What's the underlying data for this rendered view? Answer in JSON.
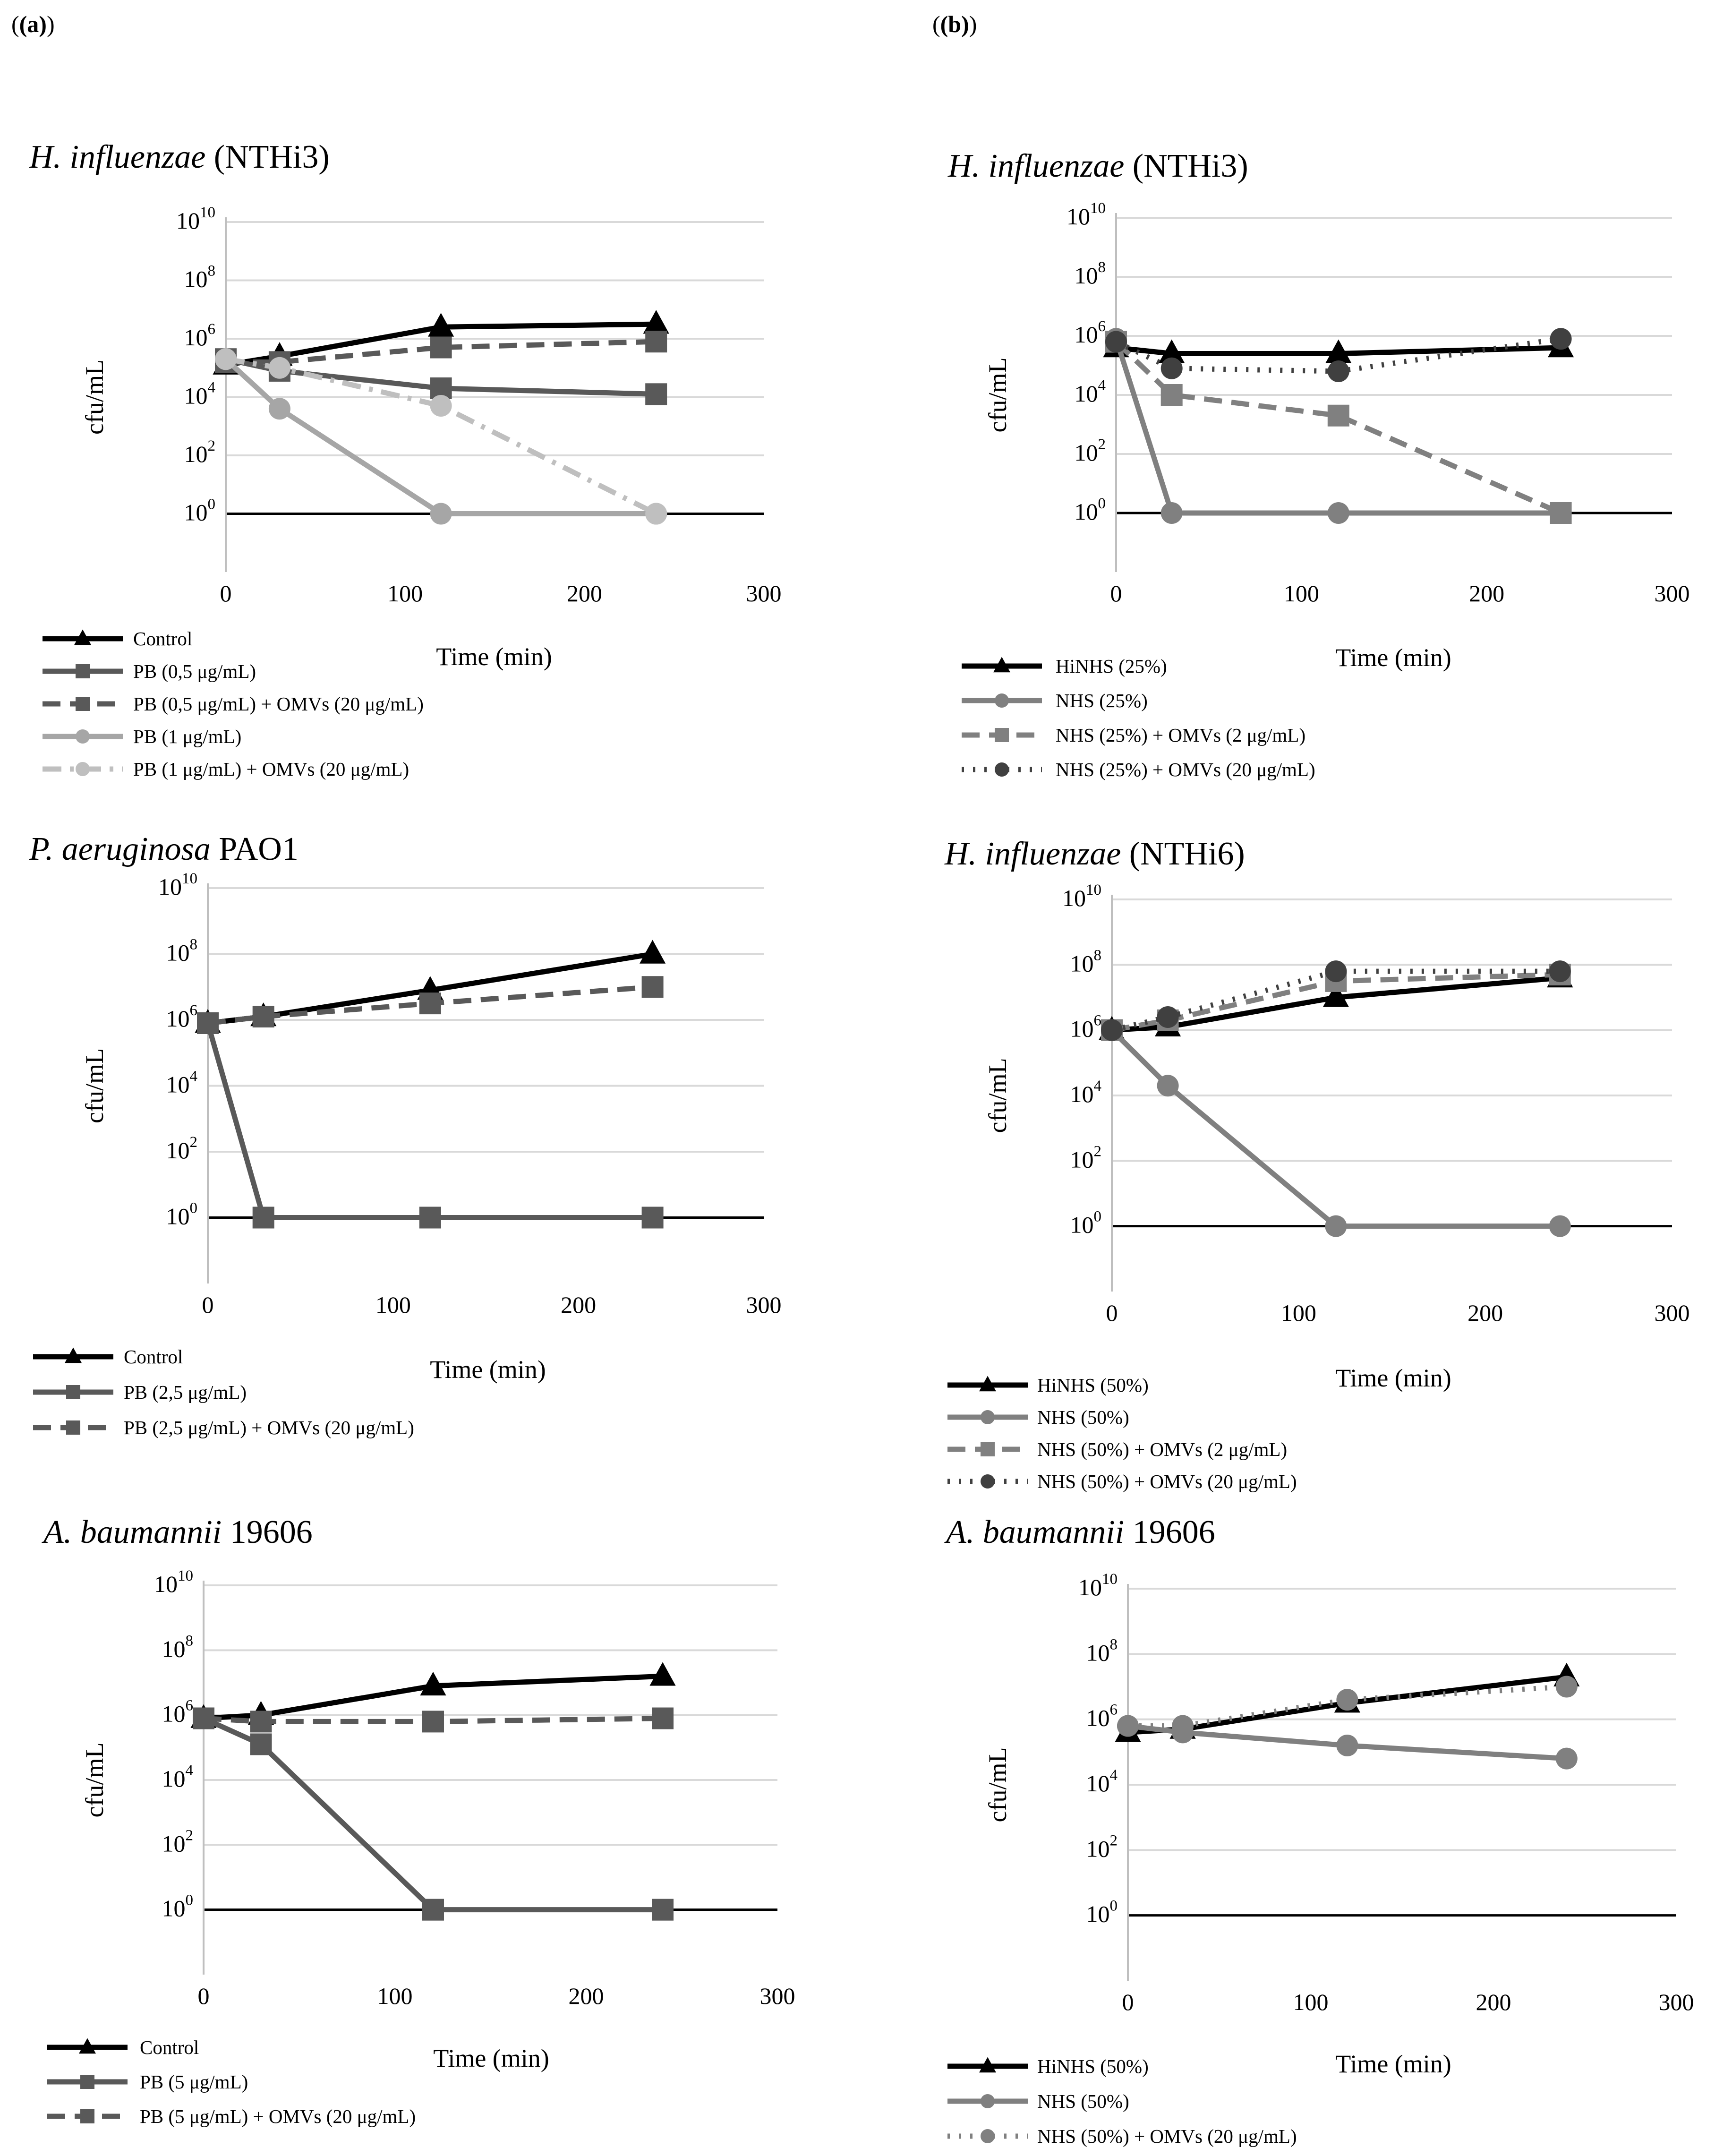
{
  "panels": {
    "a": "(a)",
    "b": "(b)"
  },
  "series_colors": {
    "black": "#000000",
    "dark_gray": "#595959",
    "mid_gray": "#808080",
    "light_gray": "#a6a6a6",
    "dotted_dark": "#404040"
  },
  "chart_data": [
    {
      "id": "a1",
      "type": "line",
      "panel": "a",
      "title_italic": "H. influenzae",
      "title_rest": " (NTHi3)",
      "xlabel": "Time (min)",
      "ylabel": "cfu/mL",
      "yscale": "log",
      "xlim": [
        0,
        300
      ],
      "ylim_exp": [
        -2,
        10
      ],
      "x_ticks": [
        "0",
        "100",
        "200",
        "300"
      ],
      "y_ticks": [
        {
          "base": "10",
          "exp": "0"
        },
        {
          "base": "10",
          "exp": "2"
        },
        {
          "base": "10",
          "exp": "4"
        },
        {
          "base": "10",
          "exp": "6"
        },
        {
          "base": "10",
          "exp": "8"
        },
        {
          "base": "10",
          "exp": "10"
        }
      ],
      "grid": true,
      "series": [
        {
          "name": "Control",
          "x": [
            0,
            30,
            120,
            240
          ],
          "log10_y": [
            5.1,
            5.4,
            6.4,
            6.5
          ],
          "color": "#000000",
          "dash": "solid",
          "marker": "triangle"
        },
        {
          "name": "PB (0,5 μg/mL)",
          "x": [
            0,
            30,
            120,
            240
          ],
          "log10_y": [
            5.3,
            4.9,
            4.3,
            4.1
          ],
          "color": "#595959",
          "dash": "solid",
          "marker": "square"
        },
        {
          "name": "PB (0,5 μg/mL) + OMVs (20 μg/mL)",
          "x": [
            0,
            30,
            120,
            240
          ],
          "log10_y": [
            5.2,
            5.2,
            5.7,
            5.9
          ],
          "color": "#595959",
          "dash": "dash",
          "marker": "square"
        },
        {
          "name": "PB (1 μg/mL)",
          "x": [
            0,
            30,
            120,
            240
          ],
          "log10_y": [
            5.3,
            3.6,
            0,
            0
          ],
          "color": "#a6a6a6",
          "dash": "solid",
          "marker": "circle"
        },
        {
          "name": "PB (1 μg/mL) + OMVs (20 μg/mL)",
          "x": [
            0,
            30,
            120,
            240
          ],
          "log10_y": [
            5.3,
            5.0,
            3.7,
            0
          ],
          "color": "#bfbfbf",
          "dash": "dashdot",
          "marker": "circle"
        }
      ]
    },
    {
      "id": "a2",
      "type": "line",
      "panel": "a",
      "title_italic": "P. aeruginosa",
      "title_rest": " PAO1",
      "xlabel": "Time (min)",
      "ylabel": "cfu/mL",
      "yscale": "log",
      "xlim": [
        0,
        300
      ],
      "ylim_exp": [
        -2,
        10
      ],
      "x_ticks": [
        "0",
        "100",
        "200",
        "300"
      ],
      "y_ticks": [
        {
          "base": "10",
          "exp": "0"
        },
        {
          "base": "10",
          "exp": "2"
        },
        {
          "base": "10",
          "exp": "4"
        },
        {
          "base": "10",
          "exp": "6"
        },
        {
          "base": "10",
          "exp": "8"
        },
        {
          "base": "10",
          "exp": "10"
        }
      ],
      "grid": true,
      "series": [
        {
          "name": "Control",
          "x": [
            0,
            30,
            120,
            240
          ],
          "log10_y": [
            5.9,
            6.1,
            6.9,
            8.0
          ],
          "color": "#000000",
          "dash": "solid",
          "marker": "triangle"
        },
        {
          "name": "PB (2,5 μg/mL)",
          "x": [
            0,
            30,
            120,
            240
          ],
          "log10_y": [
            5.9,
            0,
            0,
            0
          ],
          "color": "#595959",
          "dash": "solid",
          "marker": "square"
        },
        {
          "name": "PB (2,5 μg/mL) + OMVs (20 μg/mL)",
          "x": [
            0,
            30,
            120,
            240
          ],
          "log10_y": [
            5.9,
            6.1,
            6.5,
            7.0
          ],
          "color": "#595959",
          "dash": "dash",
          "marker": "square"
        }
      ]
    },
    {
      "id": "a3",
      "type": "line",
      "panel": "a",
      "title_italic": "A. baumannii",
      "title_rest": " 19606",
      "xlabel": "Time (min)",
      "ylabel": "cfu/mL",
      "yscale": "log",
      "xlim": [
        0,
        300
      ],
      "ylim_exp": [
        -2,
        10
      ],
      "x_ticks": [
        "0",
        "100",
        "200",
        "300"
      ],
      "y_ticks": [
        {
          "base": "10",
          "exp": "0"
        },
        {
          "base": "10",
          "exp": "2"
        },
        {
          "base": "10",
          "exp": "4"
        },
        {
          "base": "10",
          "exp": "6"
        },
        {
          "base": "10",
          "exp": "8"
        },
        {
          "base": "10",
          "exp": "10"
        }
      ],
      "grid": true,
      "series": [
        {
          "name": "Control",
          "x": [
            0,
            30,
            120,
            240
          ],
          "log10_y": [
            5.9,
            6.0,
            6.9,
            7.2
          ],
          "color": "#000000",
          "dash": "solid",
          "marker": "triangle"
        },
        {
          "name": "PB (5 μg/mL)",
          "x": [
            0,
            30,
            120,
            240
          ],
          "log10_y": [
            5.9,
            5.1,
            0,
            0
          ],
          "color": "#595959",
          "dash": "solid",
          "marker": "square"
        },
        {
          "name": "PB (5 μg/mL) + OMVs (20 μg/mL)",
          "x": [
            0,
            30,
            120,
            240
          ],
          "log10_y": [
            5.9,
            5.8,
            5.8,
            5.9
          ],
          "color": "#595959",
          "dash": "dash",
          "marker": "square"
        }
      ]
    },
    {
      "id": "b1",
      "type": "line",
      "panel": "b",
      "title_italic": "H. influenzae",
      "title_rest": " (NTHi3)",
      "xlabel": "Time (min)",
      "ylabel": "cfu/mL",
      "yscale": "log",
      "xlim": [
        0,
        300
      ],
      "ylim_exp": [
        -2,
        10
      ],
      "x_ticks": [
        "0",
        "100",
        "200",
        "300"
      ],
      "y_ticks": [
        {
          "base": "10",
          "exp": "0"
        },
        {
          "base": "10",
          "exp": "2"
        },
        {
          "base": "10",
          "exp": "4"
        },
        {
          "base": "10",
          "exp": "6"
        },
        {
          "base": "10",
          "exp": "8"
        },
        {
          "base": "10",
          "exp": "10"
        }
      ],
      "grid": true,
      "series": [
        {
          "name": "HiNHS (25%)",
          "x": [
            0,
            30,
            120,
            240
          ],
          "log10_y": [
            5.6,
            5.4,
            5.4,
            5.6
          ],
          "color": "#000000",
          "dash": "solid",
          "marker": "triangle"
        },
        {
          "name": "NHS (25%)",
          "x": [
            0,
            30,
            120,
            240
          ],
          "log10_y": [
            5.9,
            0,
            0,
            0
          ],
          "color": "#808080",
          "dash": "solid",
          "marker": "circle"
        },
        {
          "name": "NHS (25%) + OMVs (2 μg/mL)",
          "x": [
            0,
            30,
            120,
            240
          ],
          "log10_y": [
            5.8,
            4.0,
            3.3,
            0
          ],
          "color": "#808080",
          "dash": "dash",
          "marker": "square"
        },
        {
          "name": "NHS (25%) + OMVs (20 μg/mL)",
          "x": [
            0,
            30,
            120,
            240
          ],
          "log10_y": [
            5.8,
            4.9,
            4.8,
            5.9
          ],
          "color": "#404040",
          "dash": "dot",
          "marker": "circle"
        }
      ]
    },
    {
      "id": "b2",
      "type": "line",
      "panel": "b",
      "title_italic": "H. influenzae",
      "title_rest": " (NTHi6)",
      "xlabel": "Time (min)",
      "ylabel": "cfu/mL",
      "yscale": "log",
      "xlim": [
        0,
        300
      ],
      "ylim_exp": [
        -2,
        10
      ],
      "x_ticks": [
        "0",
        "100",
        "200",
        "300"
      ],
      "y_ticks": [
        {
          "base": "10",
          "exp": "0"
        },
        {
          "base": "10",
          "exp": "2"
        },
        {
          "base": "10",
          "exp": "4"
        },
        {
          "base": "10",
          "exp": "6"
        },
        {
          "base": "10",
          "exp": "8"
        },
        {
          "base": "10",
          "exp": "10"
        }
      ],
      "grid": true,
      "series": [
        {
          "name": "HiNHS (50%)",
          "x": [
            0,
            30,
            120,
            240
          ],
          "log10_y": [
            6.0,
            6.1,
            7.0,
            7.6
          ],
          "color": "#000000",
          "dash": "solid",
          "marker": "triangle"
        },
        {
          "name": "NHS (50%)",
          "x": [
            0,
            30,
            120,
            240
          ],
          "log10_y": [
            6.0,
            4.3,
            0,
            0
          ],
          "color": "#808080",
          "dash": "solid",
          "marker": "circle"
        },
        {
          "name": "NHS (50%) + OMVs (2 μg/mL)",
          "x": [
            0,
            30,
            120,
            240
          ],
          "log10_y": [
            6.0,
            6.3,
            7.5,
            7.7
          ],
          "color": "#808080",
          "dash": "dash",
          "marker": "square"
        },
        {
          "name": "NHS (50%) + OMVs (20 μg/mL)",
          "x": [
            0,
            30,
            120,
            240
          ],
          "log10_y": [
            6.0,
            6.4,
            7.8,
            7.8
          ],
          "color": "#404040",
          "dash": "dot",
          "marker": "circle"
        }
      ]
    },
    {
      "id": "b3",
      "type": "line",
      "panel": "b",
      "title_italic": "A. baumannii",
      "title_rest": " 19606",
      "xlabel": "Time (min)",
      "ylabel": "cfu/mL",
      "yscale": "log",
      "xlim": [
        0,
        300
      ],
      "ylim_exp": [
        -2,
        10
      ],
      "x_ticks": [
        "0",
        "100",
        "200",
        "300"
      ],
      "y_ticks": [
        {
          "base": "10",
          "exp": "0"
        },
        {
          "base": "10",
          "exp": "2"
        },
        {
          "base": "10",
          "exp": "4"
        },
        {
          "base": "10",
          "exp": "6"
        },
        {
          "base": "10",
          "exp": "8"
        },
        {
          "base": "10",
          "exp": "10"
        }
      ],
      "grid": true,
      "series": [
        {
          "name": "HiNHS (50%)",
          "x": [
            0,
            30,
            120,
            240
          ],
          "log10_y": [
            5.6,
            5.7,
            6.5,
            7.3
          ],
          "color": "#000000",
          "dash": "solid",
          "marker": "triangle"
        },
        {
          "name": "NHS (50%)",
          "x": [
            0,
            30,
            120,
            240
          ],
          "log10_y": [
            5.8,
            5.6,
            5.2,
            4.8
          ],
          "color": "#808080",
          "dash": "solid",
          "marker": "circle"
        },
        {
          "name": "NHS (50%) + OMVs (20 μg/mL)",
          "x": [
            0,
            30,
            120,
            240
          ],
          "log10_y": [
            5.8,
            5.8,
            6.6,
            7.0
          ],
          "color": "#808080",
          "dash": "dot",
          "marker": "circle"
        }
      ]
    }
  ]
}
